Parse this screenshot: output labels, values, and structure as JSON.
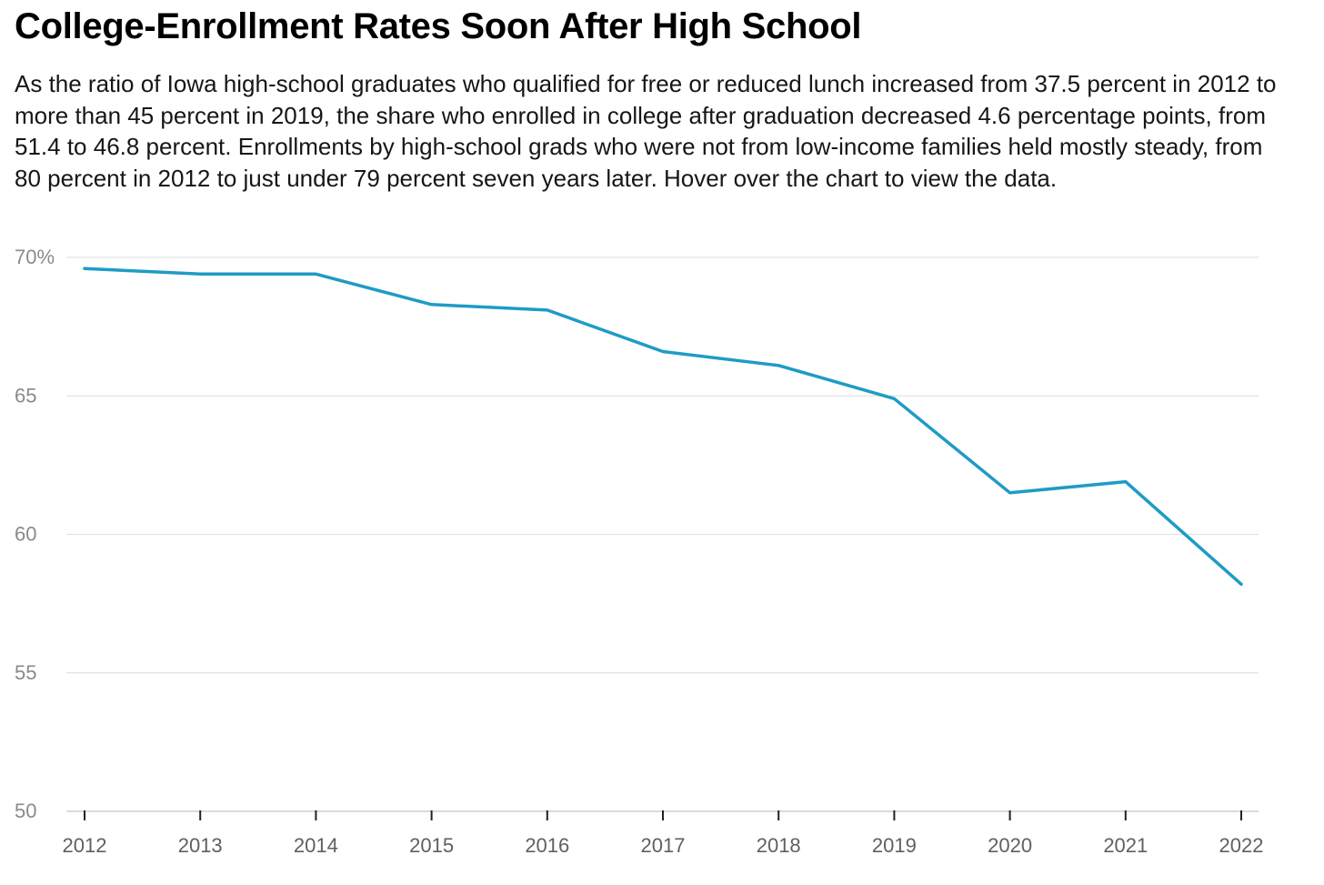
{
  "title": "College-Enrollment Rates Soon After High School",
  "subtitle": "As the ratio of Iowa high-school graduates who qualified for free or reduced lunch increased from 37.5 percent in 2012 to more than 45 percent in 2019, the share who enrolled in college after graduation decreased 4.6 percentage points, from 51.4 to 46.8 percent. Enrollments by high-school grads who were not from low-income families held mostly steady, from 80 percent in 2012 to just under 79 percent seven years later. Hover over the chart to view the data.",
  "colors": {
    "line": "#1f9bc6",
    "grid": "#e3e3e3",
    "axis": "#cfcfcf"
  },
  "chart_data": {
    "type": "line",
    "title": "College-Enrollment Rates Soon After High School",
    "xlabel": "",
    "ylabel": "",
    "x": [
      "2012",
      "2013",
      "2014",
      "2015",
      "2016",
      "2017",
      "2018",
      "2019",
      "2020",
      "2021",
      "2022"
    ],
    "series": [
      {
        "values": [
          69.6,
          69.4,
          69.4,
          68.3,
          68.1,
          66.6,
          66.1,
          64.9,
          61.5,
          61.9,
          58.2
        ]
      }
    ],
    "ylim": [
      50,
      70
    ],
    "yticks": [
      50,
      55,
      60,
      65,
      70
    ],
    "ytick_labels": [
      "50",
      "55",
      "60",
      "65",
      "70%"
    ],
    "grid": true,
    "legend": "none"
  }
}
